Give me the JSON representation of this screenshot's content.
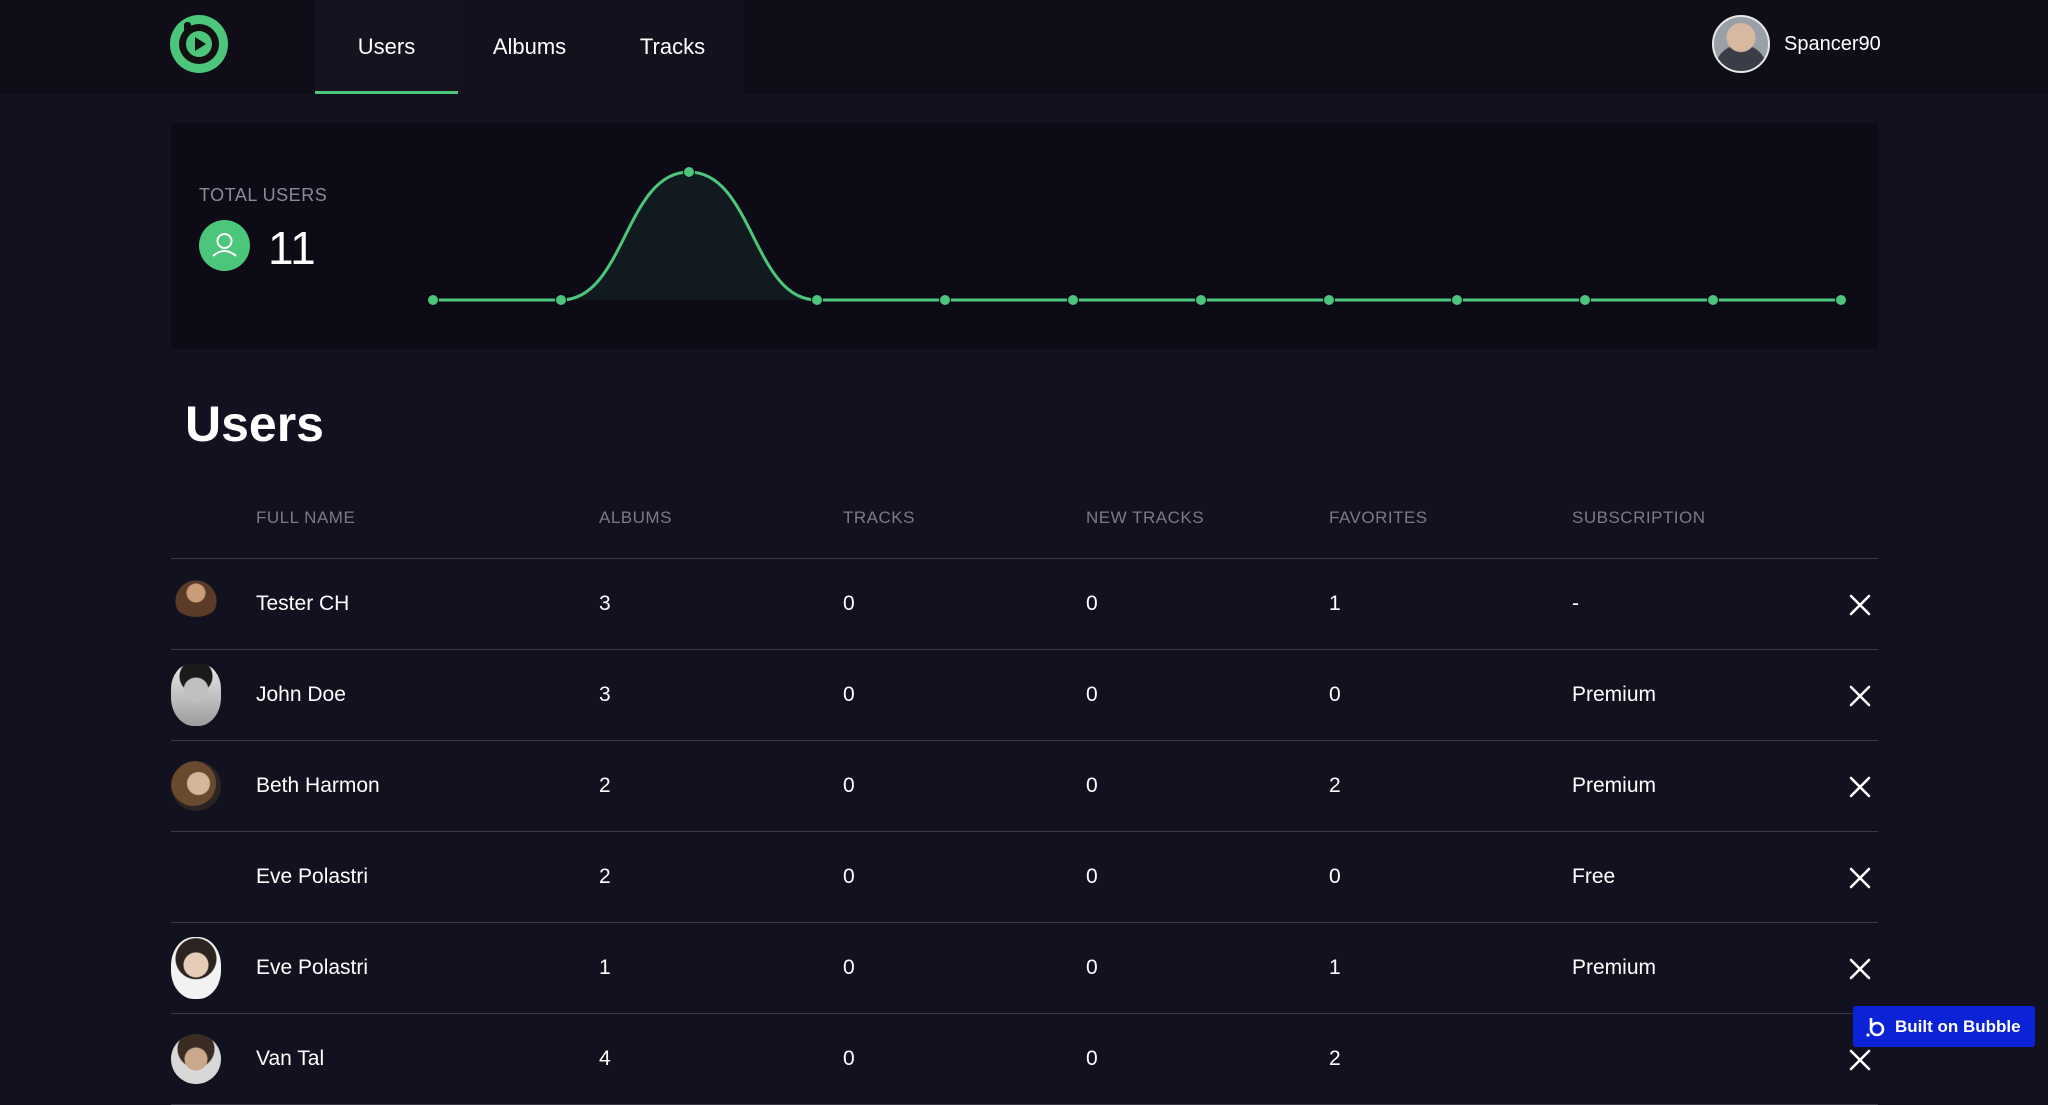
{
  "nav": {
    "tabs": [
      {
        "label": "Users",
        "active": true
      },
      {
        "label": "Albums",
        "active": false
      },
      {
        "label": "Tracks",
        "active": false
      }
    ],
    "user": {
      "name": "Spancer90"
    }
  },
  "stats": {
    "label": "TOTAL USERS",
    "value": "11",
    "chart_data": {
      "type": "area",
      "values": [
        0,
        0,
        11,
        0,
        0,
        0,
        0,
        0,
        0,
        0,
        0,
        0
      ],
      "color": "#4cc67a"
    }
  },
  "page": {
    "title": "Users"
  },
  "table": {
    "columns": [
      "FULL NAME",
      "ALBUMS",
      "TRACKS",
      "NEW TRACKS",
      "FAVORITES",
      "SUBSCRIPTION"
    ],
    "rows": [
      {
        "name": "Tester CH",
        "albums": "3",
        "tracks": "0",
        "new_tracks": "0",
        "favorites": "1",
        "subscription": "-"
      },
      {
        "name": "John Doe",
        "albums": "3",
        "tracks": "0",
        "new_tracks": "0",
        "favorites": "0",
        "subscription": "Premium"
      },
      {
        "name": "Beth Harmon",
        "albums": "2",
        "tracks": "0",
        "new_tracks": "0",
        "favorites": "2",
        "subscription": "Premium"
      },
      {
        "name": "Eve Polastri",
        "albums": "2",
        "tracks": "0",
        "new_tracks": "0",
        "favorites": "0",
        "subscription": "Free"
      },
      {
        "name": "Eve Polastri",
        "albums": "1",
        "tracks": "0",
        "new_tracks": "0",
        "favorites": "1",
        "subscription": "Premium"
      },
      {
        "name": "Van Tal",
        "albums": "4",
        "tracks": "0",
        "new_tracks": "0",
        "favorites": "2",
        "subscription": ""
      }
    ]
  },
  "badge": {
    "label": "Built on Bubble"
  },
  "colors": {
    "accent": "#4cc67a",
    "background": "#12111f",
    "badge": "#0b22d6"
  },
  "icons": {
    "logo": "bubble-logo-icon",
    "user": "user-icon",
    "delete": "close-icon"
  }
}
